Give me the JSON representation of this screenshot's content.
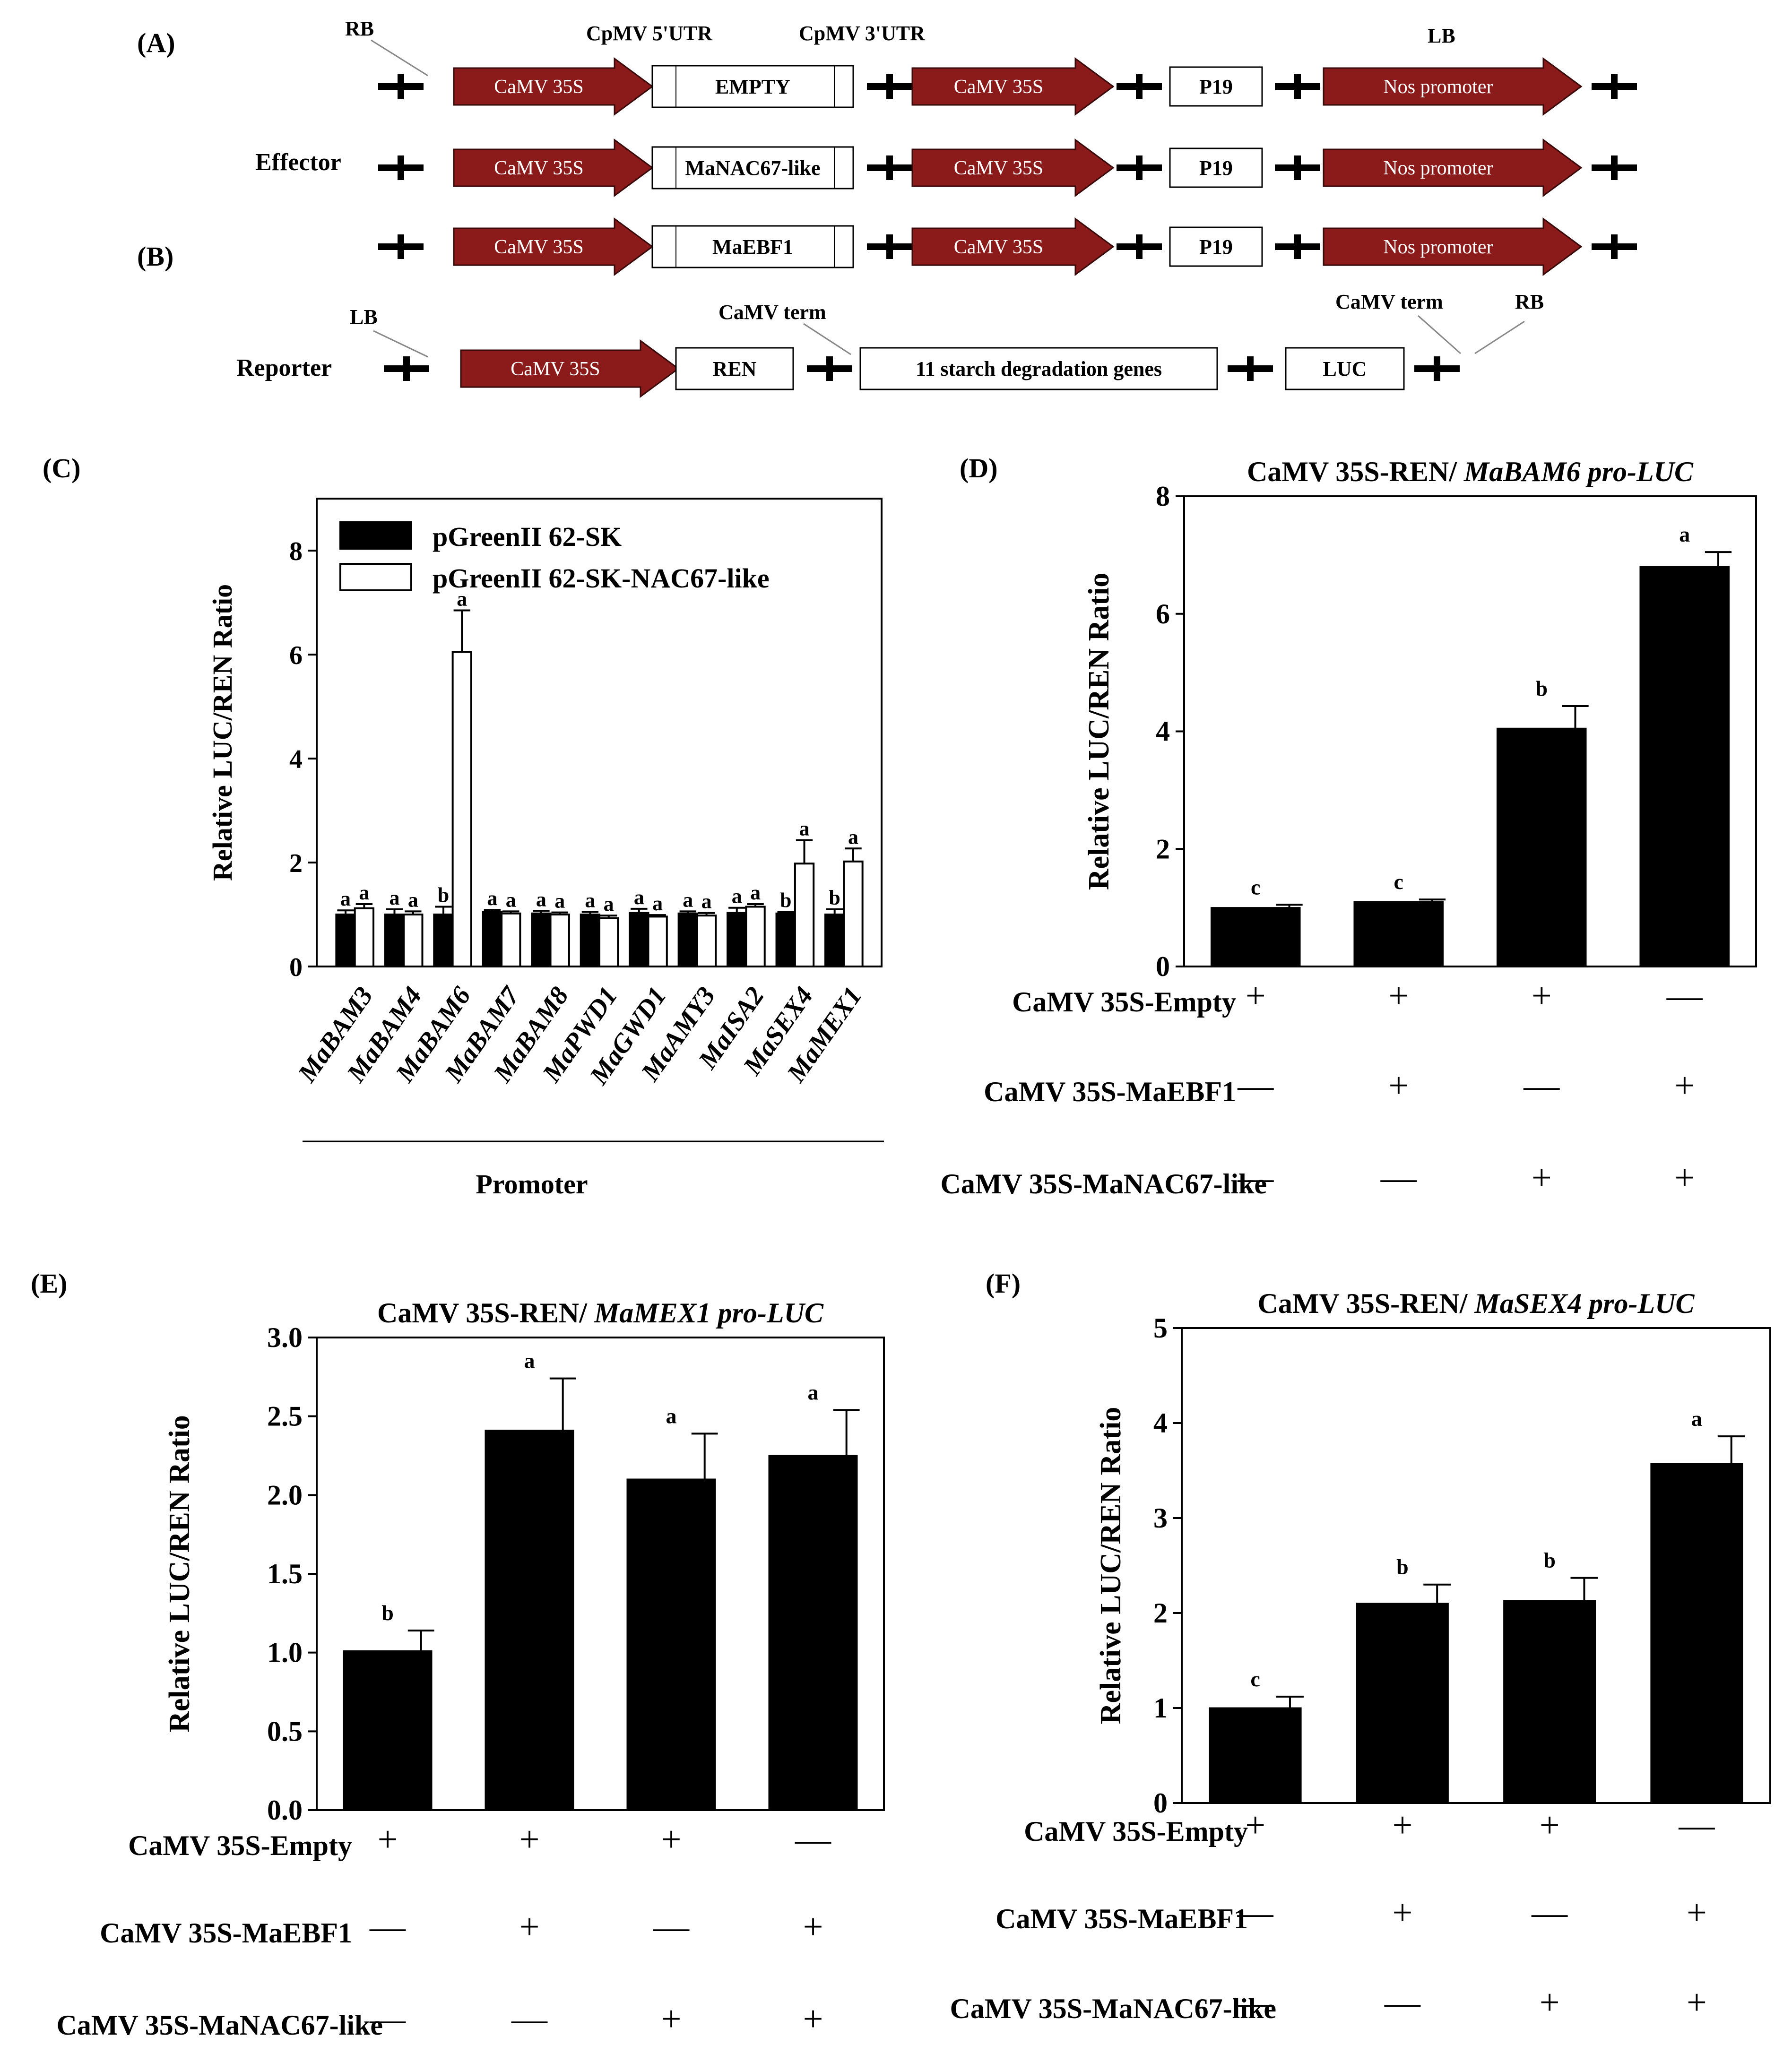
{
  "panels": {
    "A": "(A)",
    "B": "(B)",
    "C": "(C)",
    "D": "(D)",
    "E": "(E)",
    "F": "(F)"
  },
  "colors": {
    "arrow": "#8B1A1A",
    "bar_filled": "#000000",
    "bar_open": "#ffffff"
  },
  "constructs": {
    "rb_label": "RB",
    "lb_label": "LB",
    "utr5_label": "CpMV 5'UTR",
    "utr3_label": "CpMV 3'UTR",
    "effector_label": "Effector",
    "reporter_label": "Reporter",
    "camv_term_label": "CaMV term",
    "promoter_35s": "CaMV 35S",
    "nos_promoter": "Nos promoter",
    "p19": "P19",
    "rows": [
      {
        "insert": "EMPTY"
      },
      {
        "insert": "MaNAC67-like"
      },
      {
        "insert": "MaEBF1"
      }
    ],
    "reporter": {
      "ren": "REN",
      "genes": "11 starch degradation genes",
      "luc": "LUC",
      "rb": "RB",
      "lb": "LB",
      "camv_term_left": "CaMV term",
      "camv_term_right": "CaMV term"
    }
  },
  "chart_data": [
    {
      "id": "C",
      "type": "bar",
      "title": "",
      "xlabel": "Promoter",
      "ylabel": "Relative LUC/REN Ratio",
      "ylim": [
        0,
        9
      ],
      "yticks": [
        "0",
        "2",
        "4",
        "6",
        "8"
      ],
      "categories": [
        "MaBAM3",
        "MaBAM4",
        "MaBAM6",
        "MaBAM7",
        "MaBAM8",
        "MaPWD1",
        "MaGWD1",
        "MaAMY3",
        "MaISA2",
        "MaSEX4",
        "MaMEX1"
      ],
      "legend": [
        "pGreenII 62-SK",
        "pGreenII 62-SK-NAC67-like"
      ],
      "series": [
        {
          "name": "pGreenII 62-SK",
          "fill": "black",
          "values": [
            1.0,
            1.0,
            1.0,
            1.05,
            1.02,
            1.0,
            1.03,
            1.02,
            1.03,
            1.02,
            1.0
          ],
          "errors": [
            0.08,
            0.1,
            0.15,
            0.04,
            0.05,
            0.05,
            0.08,
            0.04,
            0.1,
            0.03,
            0.1
          ],
          "letters": [
            "a",
            "a",
            "b",
            "a",
            "a",
            "a",
            "a",
            "a",
            "a",
            "b",
            "b"
          ]
        },
        {
          "name": "pGreenII 62-SK-NAC67-like",
          "fill": "white",
          "values": [
            1.12,
            1.0,
            6.05,
            1.02,
            1.0,
            0.93,
            0.96,
            0.98,
            1.15,
            1.98,
            2.02
          ],
          "errors": [
            0.08,
            0.06,
            0.8,
            0.04,
            0.04,
            0.05,
            0.03,
            0.05,
            0.05,
            0.45,
            0.25
          ],
          "letters": [
            "a",
            "a",
            "a",
            "a",
            "a",
            "a",
            "a",
            "a",
            "a",
            "a",
            "a"
          ]
        }
      ]
    },
    {
      "id": "D",
      "type": "bar",
      "title_plain": "CaMV 35S-REN/ ",
      "title_italic": "MaBAM6 pro-LUC",
      "ylabel": "Relative LUC/REN Ratio",
      "ylim": [
        0,
        8
      ],
      "yticks": [
        "0",
        "2",
        "4",
        "6",
        "8"
      ],
      "values": [
        1.0,
        1.1,
        4.05,
        6.8
      ],
      "errors": [
        0.05,
        0.04,
        0.38,
        0.25
      ],
      "letters": [
        "c",
        "c",
        "b",
        "a"
      ],
      "treatments": [
        {
          "label": "CaMV 35S-Empty",
          "signs": [
            "+",
            "+",
            "+",
            "—"
          ]
        },
        {
          "label": "CaMV 35S-MaEBF1",
          "signs": [
            "—",
            "+",
            "—",
            "+"
          ]
        },
        {
          "label": "CaMV 35S-MaNAC67-like",
          "signs": [
            "—",
            "—",
            "+",
            "+"
          ]
        }
      ]
    },
    {
      "id": "E",
      "type": "bar",
      "title_plain": "CaMV 35S-REN/ ",
      "title_italic": "MaMEX1 pro-LUC",
      "ylabel": "Relative LUC/REN Ratio",
      "ylim": [
        0,
        3.0
      ],
      "yticks": [
        "0.0",
        "0.5",
        "1.0",
        "1.5",
        "2.0",
        "2.5",
        "3.0"
      ],
      "values": [
        1.01,
        2.41,
        2.1,
        2.25
      ],
      "errors": [
        0.13,
        0.33,
        0.29,
        0.29
      ],
      "letters": [
        "b",
        "a",
        "a",
        "a"
      ],
      "treatments": [
        {
          "label": "CaMV 35S-Empty",
          "signs": [
            "+",
            "+",
            "+",
            "—"
          ]
        },
        {
          "label": "CaMV 35S-MaEBF1",
          "signs": [
            "—",
            "+",
            "—",
            "+"
          ]
        },
        {
          "label": "CaMV 35S-MaNAC67-like",
          "signs": [
            "—",
            "—",
            "+",
            "+"
          ]
        }
      ]
    },
    {
      "id": "F",
      "type": "bar",
      "title_plain": "CaMV 35S-REN/ ",
      "title_italic": "MaSEX4 pro-LUC",
      "ylabel": "Relative LUC/REN Ratio",
      "ylim": [
        0,
        5
      ],
      "yticks": [
        "0",
        "1",
        "2",
        "3",
        "4",
        "5"
      ],
      "values": [
        1.0,
        2.1,
        2.13,
        3.57
      ],
      "errors": [
        0.12,
        0.2,
        0.24,
        0.29
      ],
      "letters": [
        "c",
        "b",
        "b",
        "a"
      ],
      "treatments": [
        {
          "label": "CaMV 35S-Empty",
          "signs": [
            "+",
            "+",
            "+",
            "—"
          ]
        },
        {
          "label": "CaMV 35S-MaEBF1",
          "signs": [
            "—",
            "+",
            "—",
            "+"
          ]
        },
        {
          "label": "CaMV 35S-MaNAC67-like",
          "signs": [
            "—",
            "—",
            "+",
            "+"
          ]
        }
      ]
    }
  ]
}
